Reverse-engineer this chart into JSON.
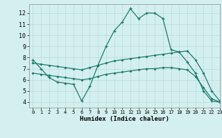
{
  "line1_x": [
    0,
    1,
    2,
    3,
    4,
    5,
    6,
    7,
    8,
    9,
    10,
    11,
    12,
    13,
    14,
    15,
    16,
    17,
    18,
    19,
    20,
    21,
    22,
    23
  ],
  "line1_y": [
    7.8,
    7.0,
    6.2,
    5.8,
    5.7,
    5.6,
    4.1,
    5.4,
    7.3,
    9.0,
    10.4,
    11.2,
    12.4,
    11.5,
    12.0,
    12.0,
    11.5,
    8.7,
    8.5,
    7.6,
    6.6,
    5.0,
    4.1,
    4.0
  ],
  "line2_x": [
    0,
    1,
    2,
    3,
    4,
    5,
    6,
    7,
    8,
    9,
    10,
    11,
    12,
    13,
    14,
    15,
    16,
    17,
    18,
    19,
    20,
    21,
    22,
    23
  ],
  "line2_y": [
    7.5,
    7.4,
    7.3,
    7.2,
    7.1,
    7.0,
    6.9,
    7.1,
    7.3,
    7.5,
    7.7,
    7.8,
    7.9,
    8.0,
    8.1,
    8.2,
    8.3,
    8.4,
    8.5,
    8.6,
    7.8,
    6.6,
    5.0,
    4.1
  ],
  "line3_x": [
    0,
    1,
    2,
    3,
    4,
    5,
    6,
    7,
    8,
    9,
    10,
    11,
    12,
    13,
    14,
    15,
    16,
    17,
    18,
    19,
    20,
    21,
    22,
    23
  ],
  "line3_y": [
    6.6,
    6.5,
    6.4,
    6.3,
    6.2,
    6.1,
    6.0,
    6.1,
    6.3,
    6.5,
    6.6,
    6.7,
    6.8,
    6.9,
    7.0,
    7.0,
    7.1,
    7.1,
    7.0,
    6.9,
    6.3,
    5.3,
    4.3,
    4.0
  ],
  "line_color": "#1a7a6a",
  "bg_color": "#d4efef",
  "grid_color": "#b8dada",
  "xlabel": "Humidex (Indice chaleur)",
  "ylim": [
    3.5,
    12.8
  ],
  "xlim": [
    -0.5,
    23
  ],
  "yticks": [
    4,
    5,
    6,
    7,
    8,
    9,
    10,
    11,
    12
  ],
  "xticks": [
    0,
    1,
    2,
    3,
    4,
    5,
    6,
    7,
    8,
    9,
    10,
    11,
    12,
    13,
    14,
    15,
    16,
    17,
    18,
    19,
    20,
    21,
    22,
    23
  ]
}
